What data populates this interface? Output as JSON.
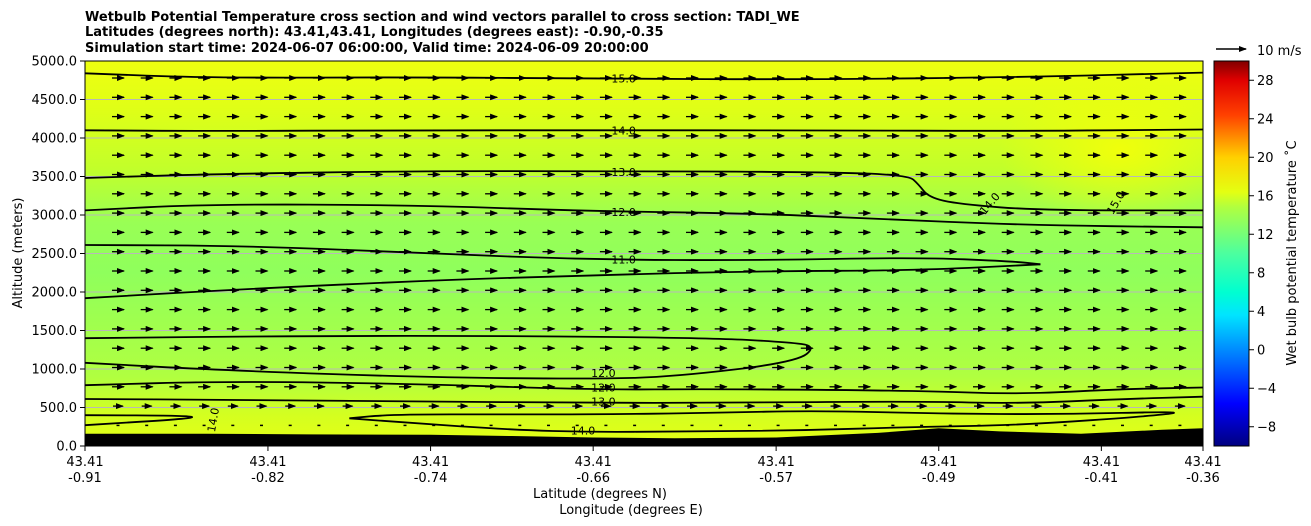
{
  "chart_data": {
    "type": "heatmap",
    "title_lines": [
      "Wetbulb Potential Temperature cross section and wind vectors parallel to cross section: TADI_WE",
      "Latitudes (degrees north): 43.41,43.41, Longitudes (degrees east): -0.90,-0.35",
      "Simulation start time: 2024-06-07 06:00:00, Valid time: 2024-06-09 20:00:00"
    ],
    "xlabel_lat": "Latitude (degrees N)",
    "xlabel_lon": "Longitude (degrees E)",
    "ylabel": "Altitude (meters)",
    "ylim": [
      0,
      5000
    ],
    "yticks": [
      "0.0",
      "500.0",
      "1000.0",
      "1500.0",
      "2000.0",
      "2500.0",
      "3000.0",
      "3500.0",
      "4000.0",
      "4500.0",
      "5000.0"
    ],
    "x_lat_ticks": [
      "43.41",
      "43.41",
      "43.41",
      "43.41",
      "43.41",
      "43.41",
      "43.41",
      "43.41"
    ],
    "x_lon_ticks": [
      "-0.91",
      "-0.82",
      "-0.74",
      "-0.66",
      "-0.57",
      "-0.49",
      "-0.41",
      "-0.36"
    ],
    "x_lon_values": [
      -0.91,
      -0.82,
      -0.74,
      -0.66,
      -0.57,
      -0.49,
      -0.41,
      -0.36
    ],
    "grid": true,
    "colorbar": {
      "label": "Wet bulb potential temperature ˚C",
      "range": [
        -10,
        30
      ],
      "ticks": [
        "−8",
        "−4",
        "0",
        "4",
        "8",
        "12",
        "16",
        "20",
        "24",
        "28"
      ],
      "tick_values": [
        -8,
        -4,
        0,
        4,
        8,
        12,
        16,
        20,
        24,
        28
      ]
    },
    "wind_key_label": "10 m/s",
    "contour_labels": [
      {
        "text": "15.0",
        "lon": -0.645,
        "alt": 4770
      },
      {
        "text": "14.0",
        "lon": -0.645,
        "alt": 4100
      },
      {
        "text": "13.0",
        "lon": -0.645,
        "alt": 3560
      },
      {
        "text": "12.0",
        "lon": -0.645,
        "alt": 3040
      },
      {
        "text": "11.0",
        "lon": -0.645,
        "alt": 2420
      },
      {
        "text": "12.0",
        "lon": -0.655,
        "alt": 950
      },
      {
        "text": "12.0",
        "lon": -0.655,
        "alt": 760
      },
      {
        "text": "13.0",
        "lon": -0.655,
        "alt": 580
      },
      {
        "text": "14.0",
        "lon": -0.665,
        "alt": 200
      },
      {
        "text": "14.0",
        "lon": -0.847,
        "alt": 340
      },
      {
        "text": "14.0",
        "lon": -0.465,
        "alt": 3150
      },
      {
        "text": "15.0",
        "lon": -0.403,
        "alt": 3160
      }
    ],
    "contours": [
      {
        "level": 15.0,
        "points": [
          [
            -0.91,
            4840
          ],
          [
            -0.85,
            4780
          ],
          [
            -0.75,
            4790
          ],
          [
            -0.66,
            4770
          ],
          [
            -0.55,
            4760
          ],
          [
            -0.45,
            4790
          ],
          [
            -0.36,
            4850
          ]
        ]
      },
      {
        "level": 14.0,
        "points": [
          [
            -0.91,
            4100
          ],
          [
            -0.85,
            4090
          ],
          [
            -0.75,
            4100
          ],
          [
            -0.66,
            4100
          ],
          [
            -0.55,
            4100
          ],
          [
            -0.45,
            4090
          ],
          [
            -0.36,
            4110
          ]
        ]
      },
      {
        "level": 13.0,
        "points": [
          [
            -0.91,
            3480
          ],
          [
            -0.85,
            3530
          ],
          [
            -0.75,
            3570
          ],
          [
            -0.66,
            3570
          ],
          [
            -0.55,
            3560
          ],
          [
            -0.505,
            3520
          ],
          [
            -0.5,
            3400
          ],
          [
            -0.495,
            3230
          ],
          [
            -0.48,
            3140
          ],
          [
            -0.44,
            3060
          ],
          [
            -0.36,
            3060
          ]
        ]
      },
      {
        "level": 12.0,
        "points": [
          [
            -0.91,
            3060
          ],
          [
            -0.85,
            3140
          ],
          [
            -0.75,
            3130
          ],
          [
            -0.66,
            3050
          ],
          [
            -0.58,
            3020
          ],
          [
            -0.52,
            2950
          ],
          [
            -0.45,
            2870
          ],
          [
            -0.36,
            2840
          ]
        ]
      },
      {
        "level": 11.0,
        "points": [
          [
            -0.91,
            2610
          ],
          [
            -0.83,
            2600
          ],
          [
            -0.74,
            2500
          ],
          [
            -0.66,
            2420
          ],
          [
            -0.58,
            2410
          ],
          [
            -0.5,
            2450
          ],
          [
            -0.455,
            2400
          ],
          [
            -0.44,
            2360
          ]
        ]
      },
      {
        "level": 11.0,
        "points": [
          [
            -0.44,
            2360
          ],
          [
            -0.5,
            2280
          ],
          [
            -0.58,
            2270
          ],
          [
            -0.66,
            2220
          ],
          [
            -0.74,
            2150
          ],
          [
            -0.83,
            2040
          ],
          [
            -0.91,
            1920
          ]
        ]
      },
      {
        "level": 12.0,
        "points": [
          [
            -0.91,
            1400
          ],
          [
            -0.8,
            1430
          ],
          [
            -0.7,
            1430
          ],
          [
            -0.6,
            1400
          ],
          [
            -0.565,
            1350
          ],
          [
            -0.55,
            1300
          ],
          [
            -0.56,
            1090
          ],
          [
            -0.62,
            900
          ],
          [
            -0.66,
            870
          ],
          [
            -0.74,
            890
          ],
          [
            -0.84,
            980
          ],
          [
            -0.91,
            1080
          ]
        ]
      },
      {
        "level": 12.0,
        "points": [
          [
            -0.91,
            790
          ],
          [
            -0.84,
            840
          ],
          [
            -0.75,
            810
          ],
          [
            -0.66,
            730
          ],
          [
            -0.6,
            740
          ],
          [
            -0.5,
            720
          ],
          [
            -0.45,
            670
          ],
          [
            -0.4,
            740
          ],
          [
            -0.36,
            760
          ]
        ]
      },
      {
        "level": 13.0,
        "points": [
          [
            -0.91,
            610
          ],
          [
            -0.84,
            600
          ],
          [
            -0.75,
            580
          ],
          [
            -0.66,
            560
          ],
          [
            -0.6,
            560
          ],
          [
            -0.5,
            580
          ],
          [
            -0.45,
            550
          ],
          [
            -0.4,
            610
          ],
          [
            -0.36,
            640
          ]
        ]
      },
      {
        "level": 14.0,
        "points": [
          [
            -0.91,
            400
          ],
          [
            -0.86,
            395
          ],
          [
            -0.855,
            360
          ],
          [
            -0.91,
            270
          ]
        ]
      },
      {
        "level": 14.0,
        "points": [
          [
            -0.78,
            360
          ],
          [
            -0.76,
            410
          ],
          [
            -0.7,
            410
          ],
          [
            -0.66,
            410
          ],
          [
            -0.6,
            430
          ],
          [
            -0.55,
            460
          ],
          [
            -0.49,
            420
          ],
          [
            -0.43,
            410
          ],
          [
            -0.37,
            450
          ],
          [
            -0.38,
            400
          ],
          [
            -0.45,
            270
          ],
          [
            -0.5,
            250
          ],
          [
            -0.56,
            200
          ],
          [
            -0.62,
            190
          ],
          [
            -0.66,
            180
          ],
          [
            -0.7,
            210
          ],
          [
            -0.75,
            300
          ],
          [
            -0.78,
            360
          ]
        ]
      }
    ],
    "terrain": [
      [
        -0.91,
        160
      ],
      [
        -0.85,
        160
      ],
      [
        -0.8,
        150
      ],
      [
        -0.74,
        145
      ],
      [
        -0.7,
        130
      ],
      [
        -0.66,
        110
      ],
      [
        -0.62,
        100
      ],
      [
        -0.57,
        110
      ],
      [
        -0.52,
        170
      ],
      [
        -0.49,
        230
      ],
      [
        -0.46,
        190
      ],
      [
        -0.42,
        160
      ],
      [
        -0.38,
        210
      ],
      [
        -0.36,
        230
      ]
    ]
  },
  "colors": {
    "background_field": "#aaff4a",
    "terrain": "#000000",
    "contour": "#000000",
    "grid": "#b8b8b8"
  }
}
